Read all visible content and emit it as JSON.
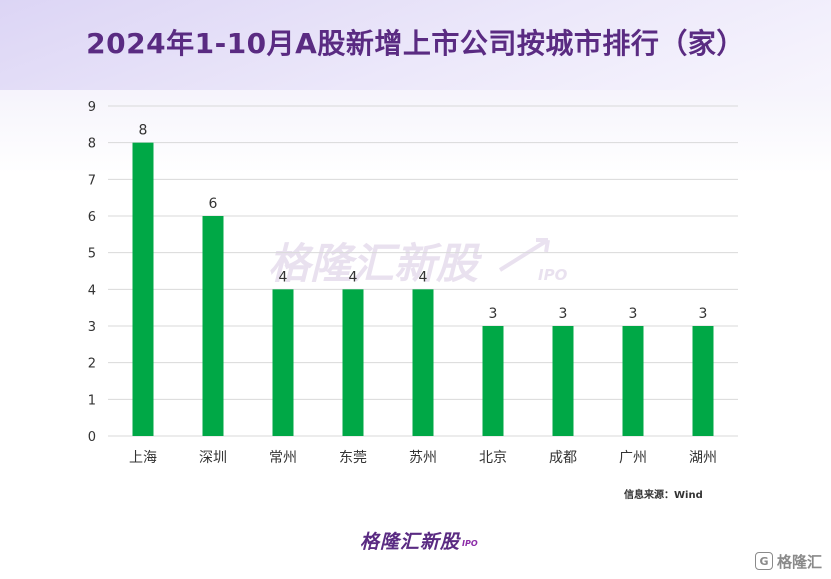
{
  "page": {
    "title": "2024年1-10月A股新增上市公司按城市排行（家）",
    "source": "信息来源：Wind",
    "watermark": {
      "text": "格隆汇新股",
      "sub": "IPO"
    },
    "footer_logo": {
      "text": "格隆汇新股",
      "sub": "IPO"
    },
    "corner_logo": {
      "glyph": "G",
      "text": "格隆汇"
    }
  },
  "colors": {
    "bar": "#00a846",
    "title": "#5a2b82",
    "grid": "#d9d9d9",
    "axis_text": "#333333"
  },
  "chart_data": {
    "type": "bar",
    "title": "2024年1-10月A股新增上市公司按城市排行（家）",
    "xlabel": "",
    "ylabel": "",
    "categories": [
      "上海",
      "深圳",
      "常州",
      "东莞",
      "苏州",
      "北京",
      "成都",
      "广州",
      "湖州"
    ],
    "values": [
      8,
      6,
      4,
      4,
      4,
      3,
      3,
      3,
      3
    ],
    "ylim": [
      0,
      9
    ],
    "yticks": [
      0,
      1,
      2,
      3,
      4,
      5,
      6,
      7,
      8,
      9
    ],
    "grid": true,
    "data_labels": true,
    "legend": "none"
  }
}
